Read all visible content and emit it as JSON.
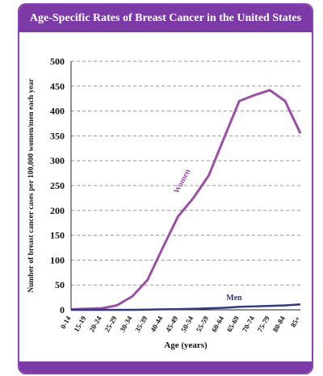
{
  "chart_data": {
    "type": "line",
    "title": "Age-Specific Rates of Breast Cancer in the United States",
    "xlabel": "Age (years)",
    "ylabel": "Number of breast cancer cases per 100,000 women/men each year",
    "ylim": [
      0,
      500
    ],
    "yticks": [
      "0",
      "50",
      "100",
      "150",
      "200",
      "250",
      "300",
      "350",
      "400",
      "450",
      "500"
    ],
    "grid": true,
    "categories": [
      "0-14",
      "15-19",
      "20-24",
      "25-29",
      "30-34",
      "35-39",
      "40-44",
      "45-49",
      "50-54",
      "55-59",
      "60-64",
      "65-69",
      "70-74",
      "75-79",
      "80-84",
      "85+"
    ],
    "series": [
      {
        "name": "Women",
        "color": "#9b4fa6",
        "values": [
          1,
          2,
          3,
          9,
          27,
          60,
          125,
          188,
          225,
          270,
          345,
          420,
          432,
          442,
          420,
          355
        ]
      },
      {
        "name": "Men",
        "color": "#2e3a87",
        "values": [
          0,
          0,
          0,
          0,
          0,
          0.5,
          1,
          1.5,
          2,
          3,
          4,
          6,
          7,
          8,
          9,
          11
        ]
      }
    ]
  }
}
